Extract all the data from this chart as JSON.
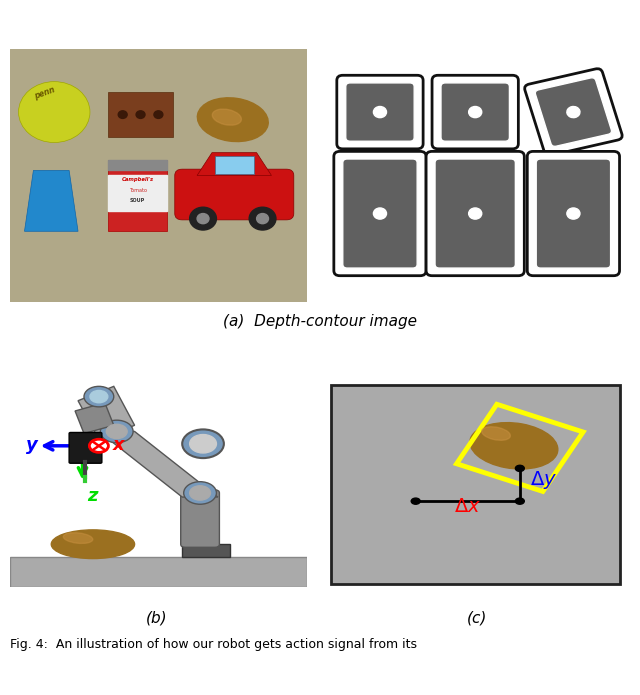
{
  "caption_a": "(a)  Depth-contour image",
  "caption_b": "(b)",
  "caption_c": "(c)",
  "fig_caption": "Fig. 4:  An illustration of how our robot gets action signal from its",
  "background_color": "#ffffff",
  "figsize": [
    6.4,
    6.95
  ],
  "dpi": 100,
  "y_arrow_color": "#0000ff",
  "x_arrow_color": "#ff0000",
  "z_arrow_color": "#00dd00",
  "delta_x_color": "#ff0000",
  "delta_y_color": "#0000ff",
  "bbox_color": "#ffff00",
  "dot_color": "#000000",
  "line_color": "#000000",
  "panel_c_bg": "#aaaaaa",
  "panel_b_bg": "#ffffff"
}
